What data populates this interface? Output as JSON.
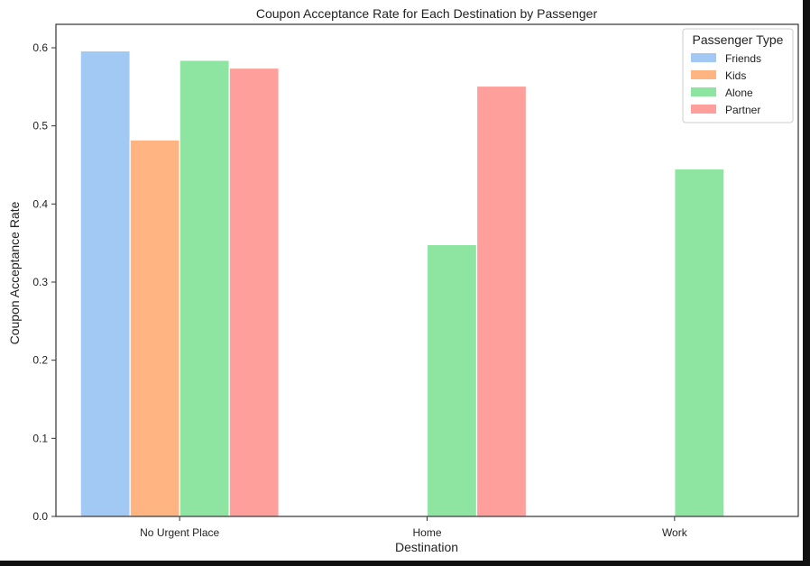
{
  "chart_data": {
    "type": "bar",
    "title": "Coupon Acceptance Rate for Each Destination by Passenger",
    "xlabel": "Destination",
    "ylabel": "Coupon Acceptance Rate",
    "categories": [
      "No Urgent Place",
      "Home",
      "Work"
    ],
    "ylim": [
      0,
      0.63
    ],
    "yticks": [
      0.0,
      0.1,
      0.2,
      0.3,
      0.4,
      0.5,
      0.6
    ],
    "ytick_labels": [
      "0.0",
      "0.1",
      "0.2",
      "0.3",
      "0.4",
      "0.5",
      "0.6"
    ],
    "grid": false,
    "legend": {
      "title": "Passenger Type",
      "placement": "top-right"
    },
    "series": [
      {
        "name": "Friends",
        "color": "#a1c9f4",
        "values": [
          0.596,
          null,
          null
        ]
      },
      {
        "name": "Kids",
        "color": "#ffb482",
        "values": [
          0.482,
          null,
          null
        ]
      },
      {
        "name": "Alone",
        "color": "#8de5a1",
        "values": [
          0.584,
          0.348,
          0.445
        ]
      },
      {
        "name": "Partner",
        "color": "#ff9f9b",
        "values": [
          0.574,
          0.551,
          null
        ]
      }
    ]
  }
}
